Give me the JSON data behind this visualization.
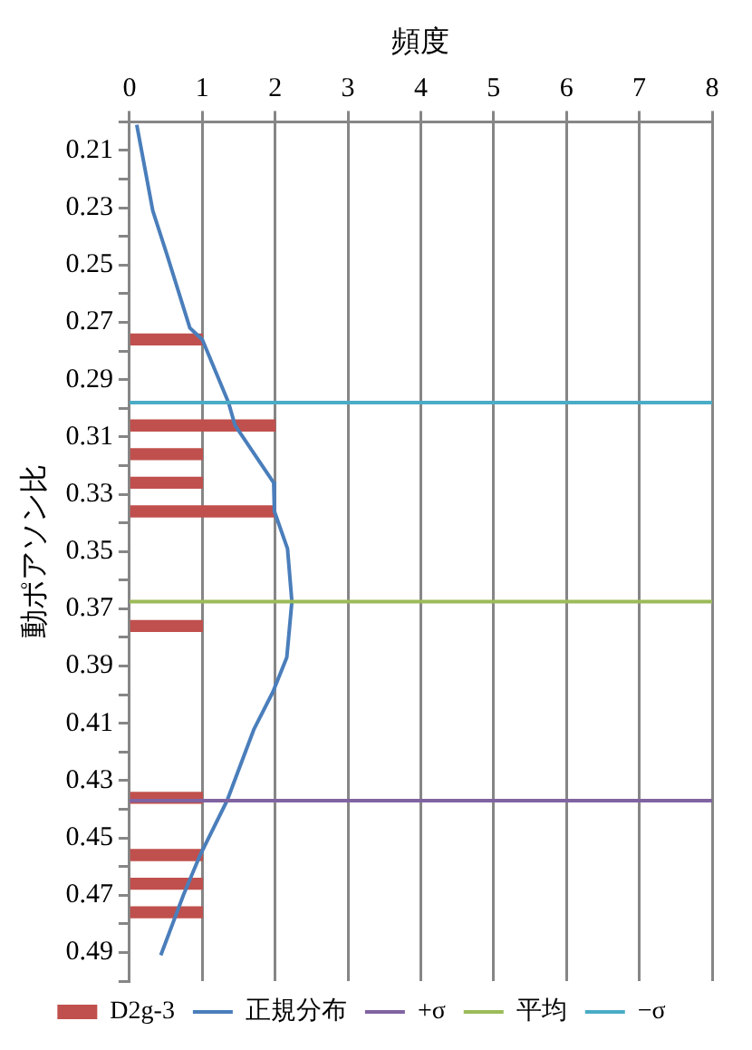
{
  "chart_data": {
    "type": "bar",
    "orientation": "horizontal",
    "xlabel": "頻度",
    "ylabel": "動ポアソン比",
    "xlim": [
      0,
      8
    ],
    "xticks": [
      0,
      1,
      2,
      3,
      4,
      5,
      6,
      7,
      8
    ],
    "ylim": [
      0.5,
      0.2
    ],
    "yticks": [
      {
        "value": 0.2,
        "label": null
      },
      0.21,
      {
        "value": 0.22,
        "label": null
      },
      0.23,
      {
        "value": 0.24,
        "label": null
      },
      0.25,
      {
        "value": 0.26,
        "label": null
      },
      0.27,
      {
        "value": 0.28,
        "label": null
      },
      0.29,
      {
        "value": 0.3,
        "label": null
      },
      0.31,
      {
        "value": 0.32,
        "label": null
      },
      0.33,
      {
        "value": 0.34,
        "label": null
      },
      0.35,
      {
        "value": 0.36,
        "label": null
      },
      0.37,
      {
        "value": 0.38,
        "label": null
      },
      0.39,
      {
        "value": 0.4,
        "label": null
      },
      0.41,
      {
        "value": 0.42,
        "label": null
      },
      0.43,
      {
        "value": 0.44,
        "label": null
      },
      0.45,
      {
        "value": 0.46,
        "label": null
      },
      0.47,
      {
        "value": 0.48,
        "label": null
      },
      0.49,
      {
        "value": 0.5,
        "label": null
      }
    ],
    "grid": "x",
    "legend": "bottom",
    "series": [
      {
        "name": "D2g-3",
        "color": "#c0504d",
        "x": [
          0.276,
          0.306,
          0.316,
          0.326,
          0.336,
          0.376,
          0.436,
          0.456,
          0.466,
          0.476
        ],
        "values": [
          1,
          2,
          1,
          1,
          2,
          1,
          1,
          1,
          1,
          1
        ]
      },
      {
        "name": "正規分布",
        "type": "line",
        "marker": "none",
        "color": "#4a7ebb",
        "x": [
          0.201,
          0.231,
          0.246,
          0.272,
          0.276,
          0.298,
          0.306,
          0.326,
          0.336,
          0.349,
          0.3675,
          0.387,
          0.399,
          0.412,
          0.437,
          0.456,
          0.47,
          0.491
        ],
        "values": [
          0.1,
          0.32,
          0.51,
          0.83,
          1.0,
          1.36,
          1.45,
          1.98,
          1.99,
          2.17,
          2.23,
          2.16,
          1.97,
          1.71,
          1.34,
          0.97,
          0.74,
          0.43
        ]
      }
    ],
    "ref_lines": [
      {
        "axis": "y",
        "value": 0.437,
        "label": "+σ",
        "color": "#8064a2"
      },
      {
        "axis": "y",
        "value": 0.3675,
        "label": "平均",
        "color": "#9bbb59"
      },
      {
        "axis": "y",
        "value": 0.298,
        "label": "−σ",
        "color": "#4bacc6"
      }
    ]
  }
}
